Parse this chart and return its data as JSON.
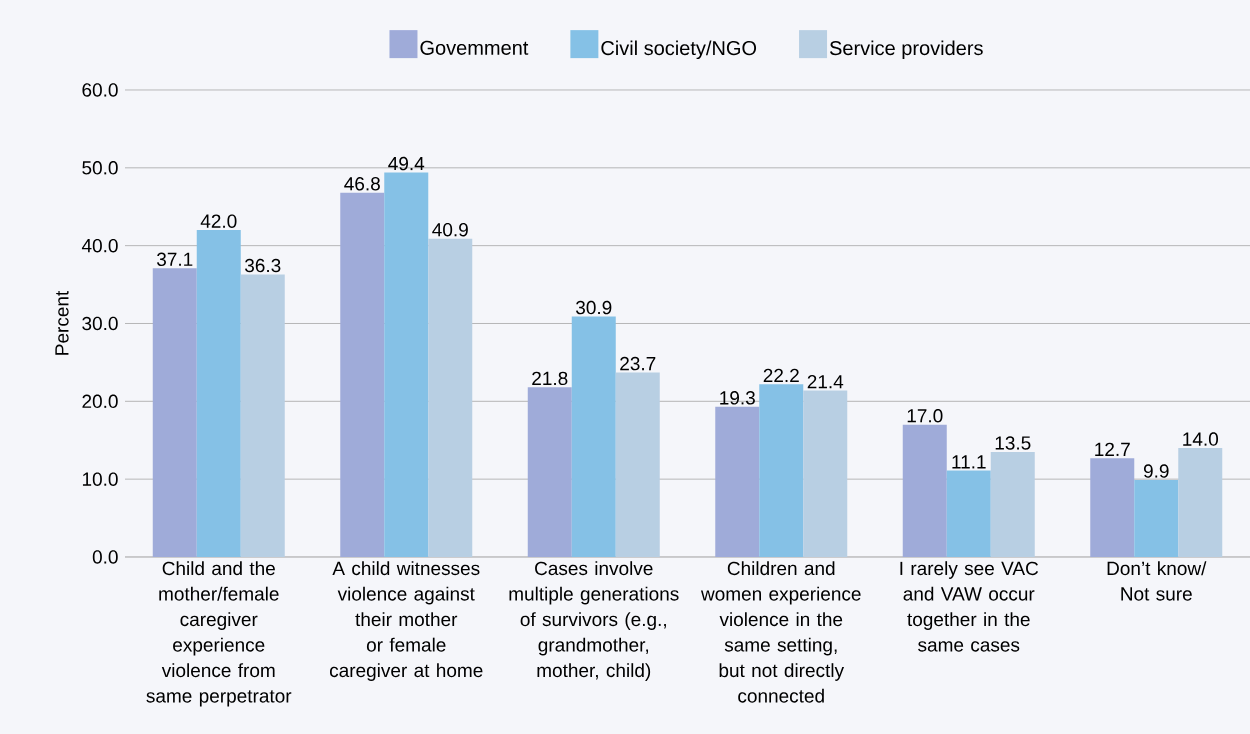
{
  "chart_data": {
    "type": "bar",
    "ylabel": "Percent",
    "legend": "top",
    "grid": "y",
    "categories": [
      "Child and the mother/female caregiver experience violence from same perpetrator",
      "A child witnesses violence against their mother or female caregiver at home",
      "Cases involve multiple generations of survivors (e.g., grandmother, mother, child)",
      "Children and women experience violence in the same setting, but not directly connected",
      "I rarely see VAC and VAW occur together in the same cases",
      "Don’t know/ Not sure"
    ],
    "series": [
      {
        "name": "Govemment",
        "color": "#9fabd9",
        "values": [
          37.1,
          46.8,
          21.8,
          19.3,
          17.0,
          12.7
        ],
        "value_labels": [
          "37.1",
          "46.8",
          "21.8",
          "19.3",
          "17.0",
          "12.7"
        ]
      },
      {
        "name": "Civil society/NGO",
        "color": "#85c1e6",
        "values": [
          42.0,
          49.4,
          30.9,
          22.2,
          11.1,
          9.9
        ],
        "value_labels": [
          "42.0",
          "49.4",
          "30.9",
          "22.2",
          "11.1",
          "9.9"
        ]
      },
      {
        "name": "Service providers",
        "color": "#b8cfe3",
        "values": [
          36.3,
          40.9,
          23.7,
          21.4,
          13.5,
          14.0
        ],
        "value_labels": [
          "36.3",
          "40.9",
          "23.7",
          "21.4",
          "13.5",
          "14.0"
        ]
      }
    ],
    "ylim": [
      0,
      60
    ],
    "yticks": [
      {
        "value": 0,
        "label": "0.0"
      },
      {
        "value": 10,
        "label": "10.0"
      },
      {
        "value": 20,
        "label": "20.0"
      },
      {
        "value": 30,
        "label": "30.0"
      },
      {
        "value": 40,
        "label": "40.0"
      },
      {
        "value": 50,
        "label": "50.0"
      },
      {
        "value": 60,
        "label": "60.0"
      }
    ]
  }
}
